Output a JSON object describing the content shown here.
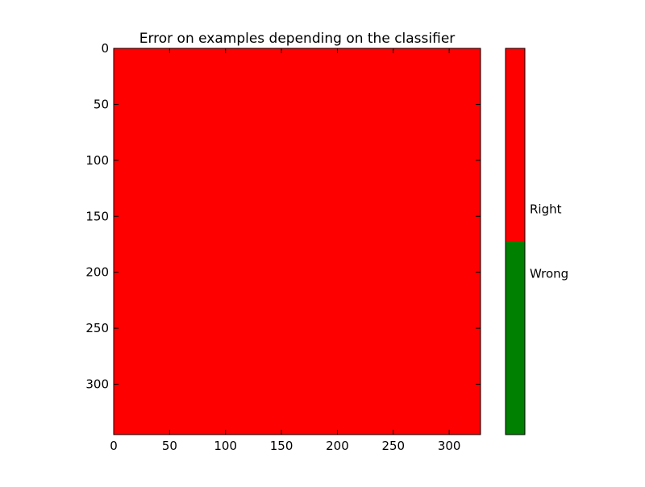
{
  "chart_data": {
    "type": "heatmap",
    "title": "Error on examples depending on the classifier",
    "xlabel": "",
    "ylabel": "",
    "xlim": [
      0,
      328
    ],
    "ylim": [
      345,
      0
    ],
    "x_ticks": [
      0,
      50,
      100,
      150,
      200,
      250,
      300
    ],
    "y_ticks": [
      0,
      50,
      100,
      150,
      200,
      250,
      300
    ],
    "grid": false,
    "cells": [
      {
        "x_range": [
          0,
          328
        ],
        "y_range": [
          0,
          345
        ],
        "value": "Right",
        "color": "#ff0000"
      }
    ],
    "colorbar": {
      "placement": "right",
      "segments": [
        {
          "label": "Wrong",
          "color": "#008000",
          "range": [
            0,
            0.5
          ]
        },
        {
          "label": "Right",
          "color": "#ff0000",
          "range": [
            0.5,
            1
          ]
        }
      ],
      "tick_labels": [
        {
          "text": "Wrong",
          "value": 0.417
        },
        {
          "text": "Right",
          "value": 0.583
        }
      ]
    }
  }
}
